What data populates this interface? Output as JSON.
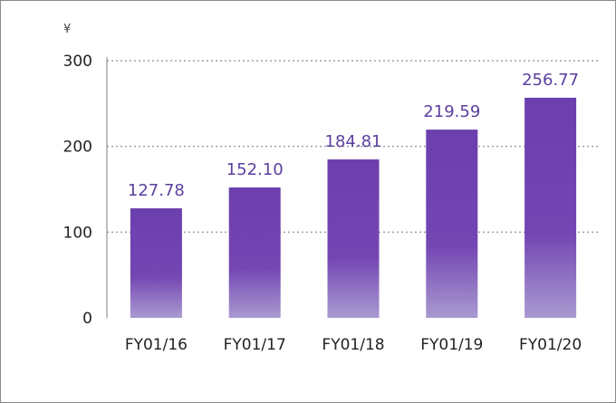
{
  "chart_data": {
    "type": "bar",
    "unit_label": "¥",
    "categories": [
      "FY01/16",
      "FY01/17",
      "FY01/18",
      "FY01/19",
      "FY01/20"
    ],
    "values": [
      127.78,
      152.1,
      184.81,
      219.59,
      256.77
    ],
    "value_labels": [
      "127.78",
      "152.10",
      "184.81",
      "219.59",
      "256.77"
    ],
    "yticks": [
      0,
      100,
      200,
      300
    ],
    "ylim": [
      0,
      300
    ],
    "grid": true,
    "legend": "none",
    "colors": {
      "bar_top": "#6b3fae",
      "bar_bottom": "#a99ad0",
      "grid": "#a0a0a0"
    }
  }
}
